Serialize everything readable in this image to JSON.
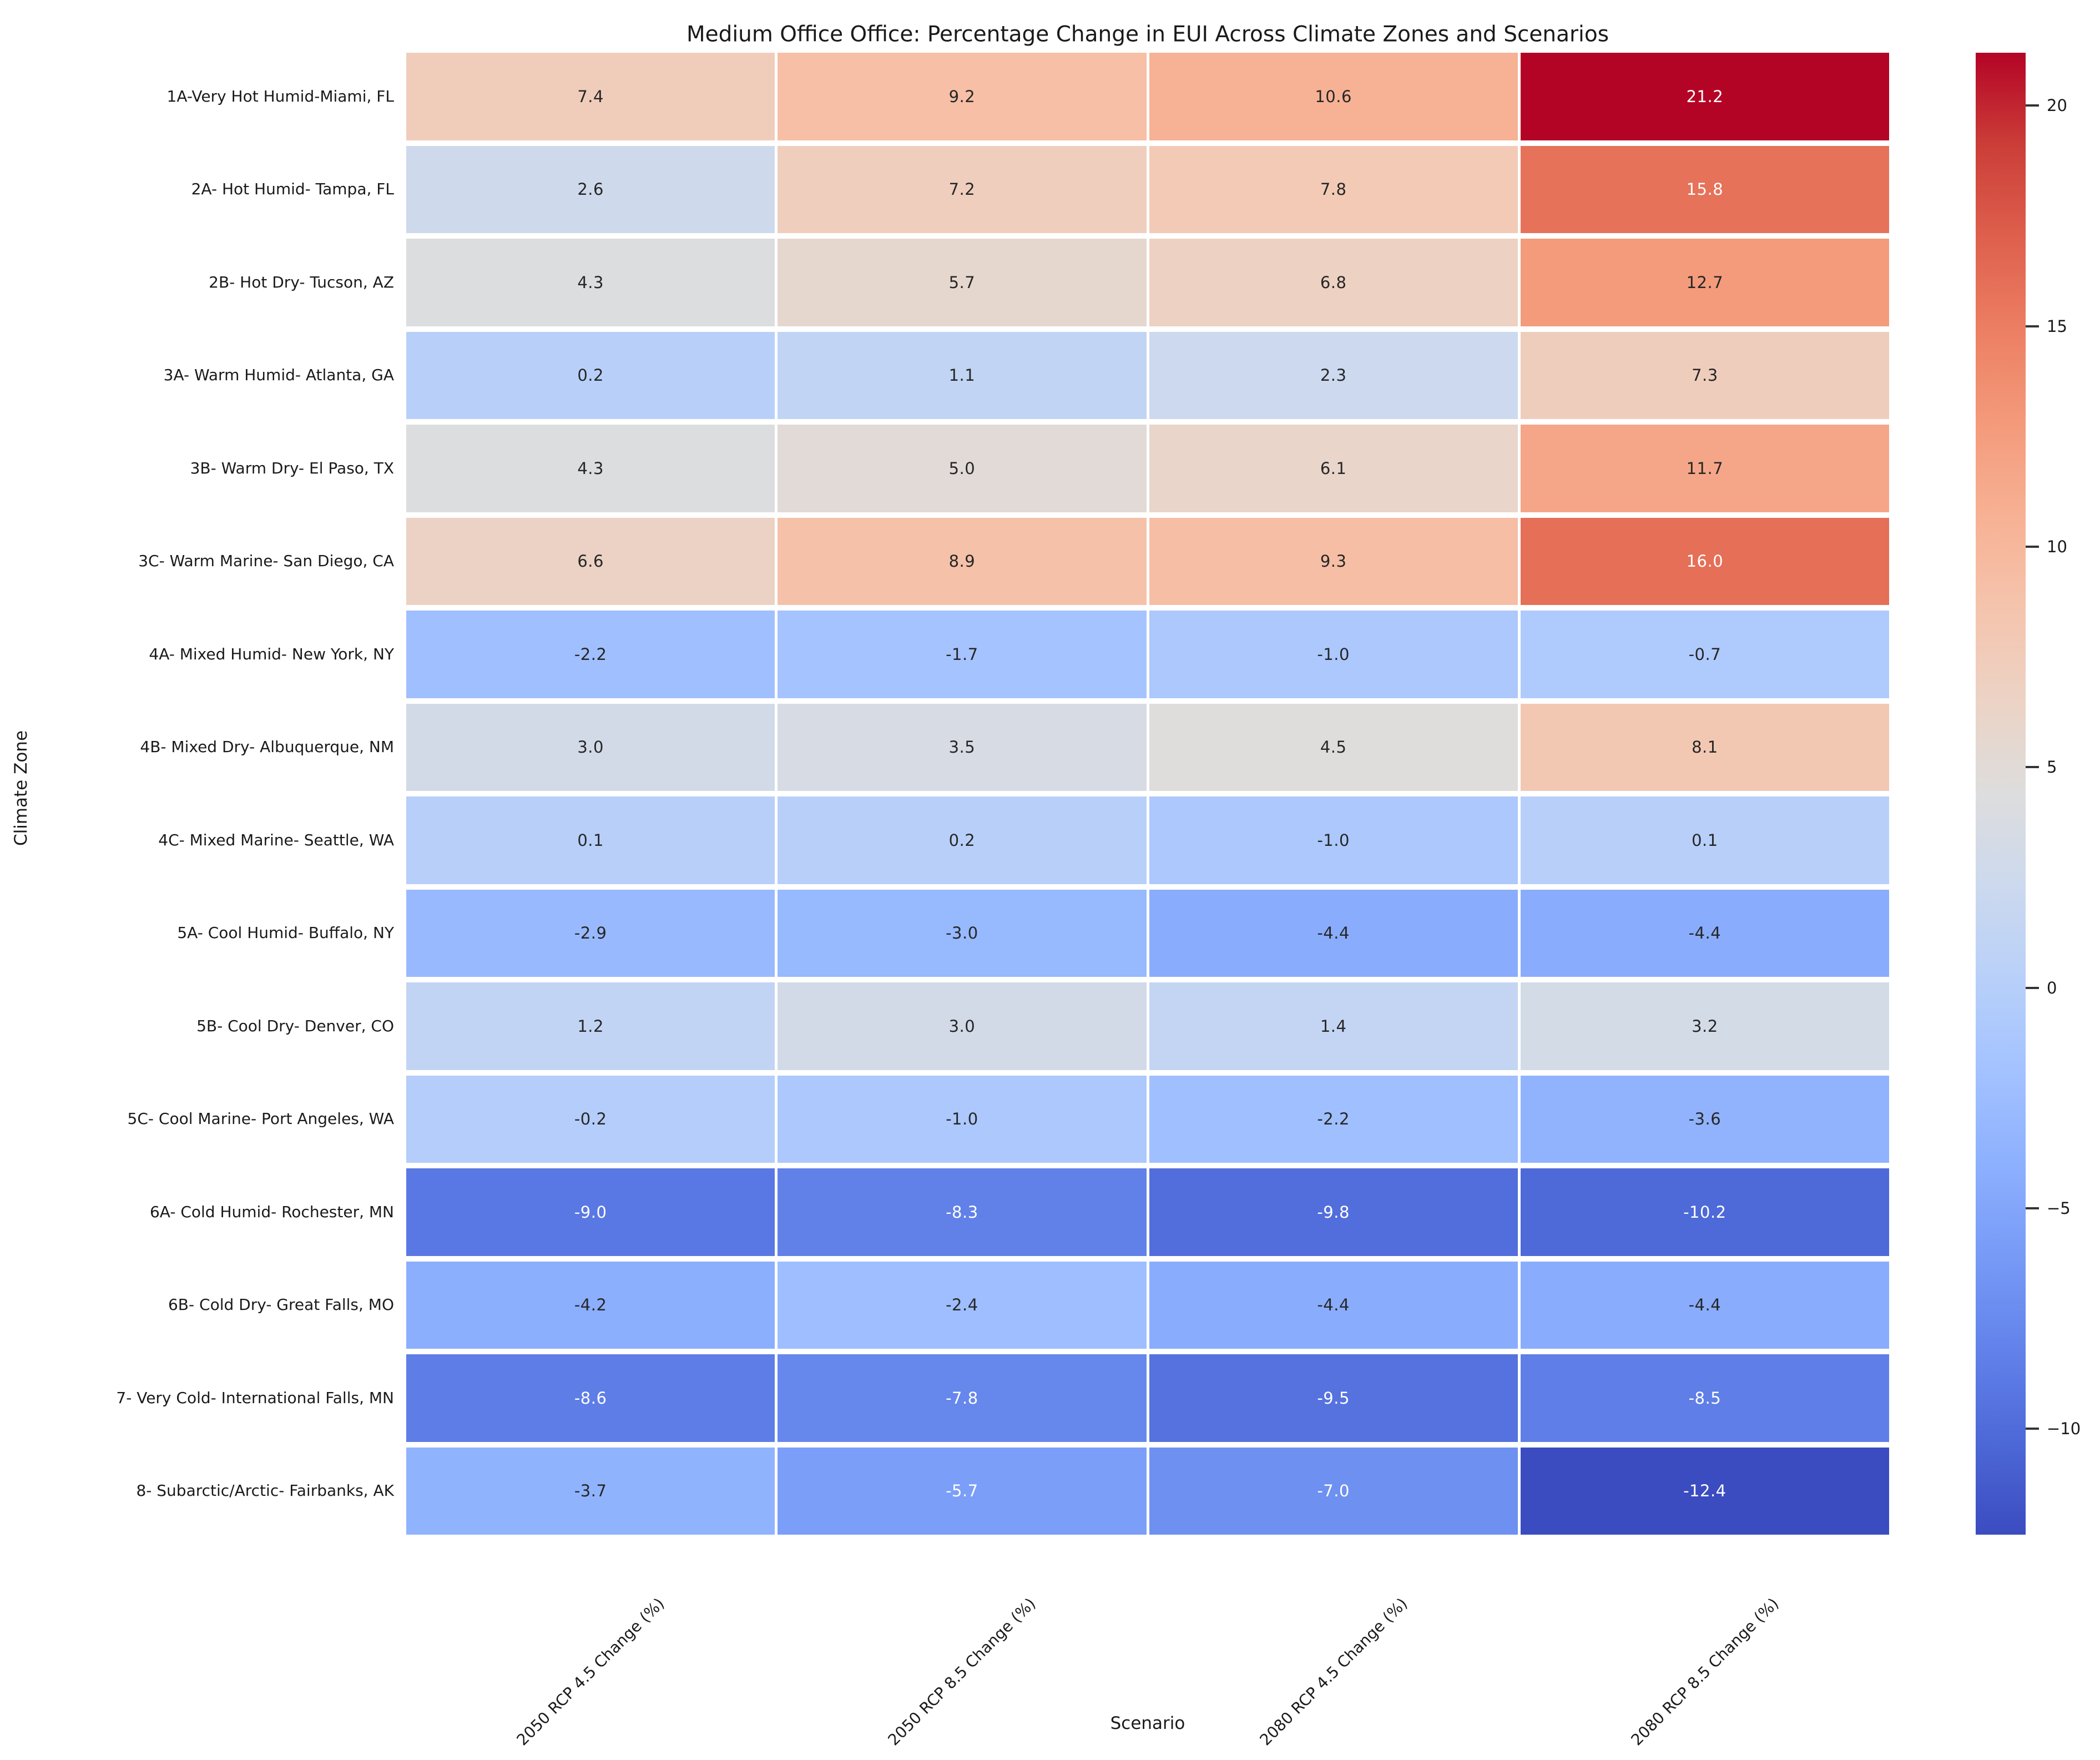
{
  "chart_data": {
    "type": "heatmap",
    "title": "Medium Office Office: Percentage Change in EUI Across Climate Zones and Scenarios",
    "xlabel": "Scenario",
    "ylabel": "Climate Zone",
    "columns": [
      "2050 RCP 4.5 Change (%)",
      "2050 RCP 8.5 Change (%)",
      "2080 RCP 4.5 Change (%)",
      "2080 RCP 8.5 Change (%)"
    ],
    "rows": [
      "1A-Very Hot Humid-Miami, FL",
      "2A- Hot Humid- Tampa, FL",
      "2B- Hot Dry- Tucson, AZ",
      "3A- Warm Humid- Atlanta, GA",
      "3B- Warm Dry- El Paso, TX",
      "3C- Warm Marine- San Diego, CA",
      "4A- Mixed Humid- New York, NY",
      "4B- Mixed Dry- Albuquerque, NM",
      "4C- Mixed Marine- Seattle, WA",
      "5A- Cool Humid- Buffalo, NY",
      "5B- Cool Dry- Denver, CO",
      "5C- Cool Marine- Port Angeles, WA",
      "6A- Cold Humid- Rochester, MN",
      "6B- Cold Dry- Great Falls, MO",
      "7- Very Cold- International Falls, MN",
      "8- Subarctic/Arctic- Fairbanks, AK"
    ],
    "values": [
      [
        7.4,
        9.2,
        10.6,
        21.2
      ],
      [
        2.6,
        7.2,
        7.8,
        15.8
      ],
      [
        4.3,
        5.7,
        6.8,
        12.7
      ],
      [
        0.2,
        1.1,
        2.3,
        7.3
      ],
      [
        4.3,
        5.0,
        6.1,
        11.7
      ],
      [
        6.6,
        8.9,
        9.3,
        16.0
      ],
      [
        -2.2,
        -1.7,
        -1.0,
        -0.7
      ],
      [
        3.0,
        3.5,
        4.5,
        8.1
      ],
      [
        0.1,
        0.2,
        -1.0,
        0.1
      ],
      [
        -2.9,
        -3.0,
        -4.4,
        -4.4
      ],
      [
        1.2,
        3.0,
        1.4,
        3.2
      ],
      [
        -0.2,
        -1.0,
        -2.2,
        -3.6
      ],
      [
        -9.0,
        -8.3,
        -9.8,
        -10.2
      ],
      [
        -4.2,
        -2.4,
        -4.4,
        -4.4
      ],
      [
        -8.6,
        -7.8,
        -9.5,
        -8.5
      ],
      [
        -3.7,
        -5.7,
        -7.0,
        -12.4
      ]
    ],
    "value_format_decimals": 1,
    "colorbar": {
      "vmin": -12.4,
      "vmax": 21.2,
      "ticks": [
        20,
        15,
        10,
        5,
        0,
        -5,
        -10
      ]
    },
    "colormap": {
      "name": "coolwarm",
      "stops": [
        "#3b4cc0",
        "#4d68d7",
        "#6282ea",
        "#779af7",
        "#8db0fe",
        "#a3c2ff",
        "#b8d0f9",
        "#ccd9ee",
        "#dddddd",
        "#ecd3c5",
        "#f5c4ad",
        "#f7b194",
        "#f49a7b",
        "#ec7f63",
        "#de604d",
        "#cb3e38",
        "#b40426"
      ]
    },
    "annotation_colors": {
      "dark": "#262626",
      "light": "#ffffff"
    },
    "legend_position": "right-colorbar",
    "grid": "white-cell-borders"
  }
}
